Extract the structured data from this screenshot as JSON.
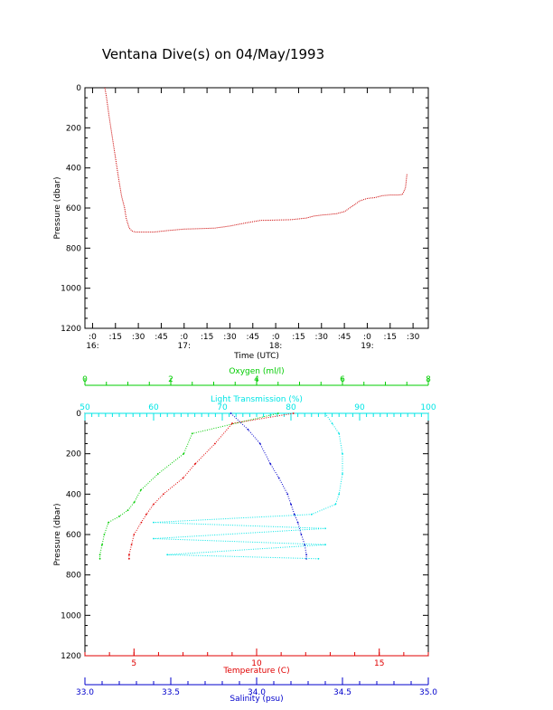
{
  "title": "Ventana Dive(s) on 04/May/1993",
  "colors": {
    "axis": "#000000",
    "profile": "#cc0000",
    "oxygen": "#00cc00",
    "transmission": "#00e5e5",
    "temperature": "#e00000",
    "salinity": "#0000cc"
  },
  "chart_data": [
    {
      "type": "line",
      "title": "Ventana Dive(s) on 04/May/1993",
      "xlabel": "Time (UTC)",
      "ylabel": "Pressure (dbar)",
      "y_inverted": true,
      "ylim": [
        0,
        1200
      ],
      "yticks": [
        "0",
        "200",
        "400",
        "600",
        "800",
        "1000",
        "1200"
      ],
      "xticks": [
        {
          "min": 0,
          "label": ":0",
          "hour": "16:"
        },
        {
          "min": 15,
          "label": ":15"
        },
        {
          "min": 30,
          "label": ":30"
        },
        {
          "min": 45,
          "label": ":45"
        },
        {
          "min": 60,
          "label": ":0",
          "hour": "17:"
        },
        {
          "min": 75,
          "label": ":15"
        },
        {
          "min": 90,
          "label": ":30"
        },
        {
          "min": 105,
          "label": ":45"
        },
        {
          "min": 120,
          "label": ":0",
          "hour": "18:"
        },
        {
          "min": 135,
          "label": ":15"
        },
        {
          "min": 150,
          "label": ":30"
        },
        {
          "min": 165,
          "label": ":45"
        },
        {
          "min": 180,
          "label": ":0",
          "hour": "19:"
        },
        {
          "min": 195,
          "label": ":15"
        },
        {
          "min": 210,
          "label": ":30"
        }
      ],
      "series": [
        {
          "x_minutes_after_1600": [
            8,
            9,
            11,
            13,
            15,
            17,
            19,
            21,
            22,
            24,
            26,
            28,
            30,
            32,
            40,
            50,
            60,
            70,
            80,
            90,
            100,
            110,
            120,
            130,
            140,
            145,
            150,
            155,
            160,
            165,
            170,
            175,
            180,
            185,
            190,
            195,
            200,
            203,
            205,
            206
          ],
          "pressure_dbar": [
            0,
            40,
            150,
            250,
            350,
            450,
            540,
            600,
            650,
            700,
            715,
            720,
            720,
            720,
            720,
            712,
            705,
            703,
            700,
            690,
            675,
            662,
            660,
            658,
            650,
            640,
            635,
            632,
            628,
            618,
            592,
            565,
            552,
            548,
            538,
            535,
            535,
            533,
            500,
            430
          ]
        }
      ]
    },
    {
      "type": "scatter",
      "ylabel": "Pressure (dbar)",
      "y_inverted": true,
      "ylim": [
        0,
        1200
      ],
      "yticks": [
        "0",
        "200",
        "400",
        "600",
        "800",
        "1000",
        "1200"
      ],
      "axes": {
        "oxygen": {
          "label": "Oxygen (ml/l)",
          "position": "top",
          "lim": [
            0,
            8
          ],
          "ticks": [
            "0",
            "2",
            "4",
            "6",
            "8"
          ]
        },
        "transmission": {
          "label": "Light Transmission (%)",
          "position": "top",
          "lim": [
            50,
            100
          ],
          "ticks": [
            "50",
            "60",
            "70",
            "80",
            "90",
            "100"
          ]
        },
        "temperature": {
          "label": "Temperature (C)",
          "position": "bottom",
          "lim": [
            3,
            17
          ],
          "ticks": [
            "5",
            "10",
            "15"
          ]
        },
        "salinity": {
          "label": "Salinity (psu)",
          "position": "bottom",
          "lim": [
            33.0,
            35.0
          ],
          "ticks": [
            "33.0",
            "33.5",
            "34.0",
            "34.5",
            "35.0"
          ]
        }
      },
      "series": [
        {
          "name": "Oxygen (ml/l)",
          "axis": "oxygen",
          "values": [
            4.5,
            2.5,
            2.3,
            1.7,
            1.3,
            1.15,
            1.0,
            0.8,
            0.55,
            0.45,
            0.4,
            0.35,
            0.35
          ],
          "pressure_dbar": [
            0,
            100,
            200,
            300,
            380,
            440,
            480,
            510,
            540,
            600,
            650,
            700,
            720
          ]
        },
        {
          "name": "Temperature (C)",
          "axis": "temperature",
          "values": [
            11.5,
            9.0,
            8.3,
            7.5,
            7.0,
            6.2,
            5.8,
            5.5,
            5.3,
            5.0,
            4.9,
            4.8,
            4.8
          ],
          "pressure_dbar": [
            0,
            50,
            150,
            250,
            320,
            400,
            450,
            500,
            540,
            600,
            650,
            700,
            720
          ]
        },
        {
          "name": "Salinity (psu)",
          "axis": "salinity",
          "values": [
            33.85,
            33.95,
            34.02,
            34.08,
            34.13,
            34.18,
            34.2,
            34.22,
            34.24,
            34.26,
            34.28,
            34.29,
            34.29
          ],
          "pressure_dbar": [
            0,
            80,
            150,
            250,
            320,
            400,
            450,
            500,
            540,
            600,
            650,
            700,
            720
          ]
        },
        {
          "name": "Light Transmission (%)",
          "axis": "transmission",
          "values": [
            85,
            86,
            87,
            87.5,
            87.5,
            87,
            86.5,
            83,
            60,
            85,
            60,
            85,
            62,
            84
          ],
          "pressure_dbar": [
            0,
            50,
            100,
            200,
            300,
            400,
            450,
            500,
            540,
            570,
            620,
            650,
            700,
            720
          ]
        }
      ]
    }
  ]
}
